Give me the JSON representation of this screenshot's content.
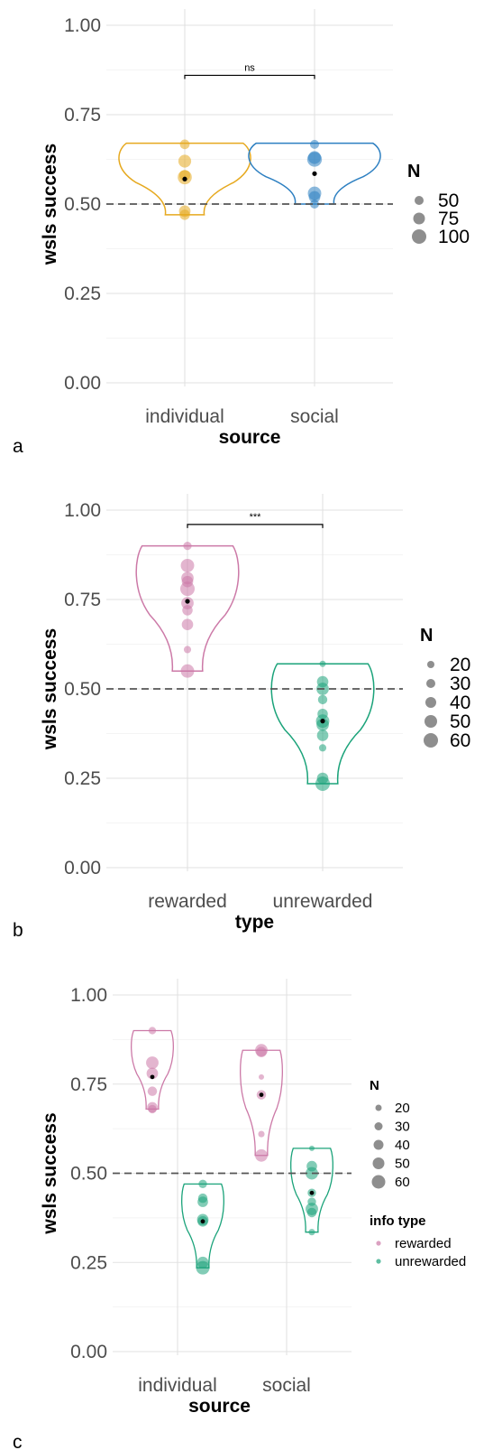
{
  "chart_data": [
    {
      "panel_label": "a",
      "type": "violin",
      "xlabel": "source",
      "ylabel": "wsls success",
      "ylim": [
        0,
        1
      ],
      "yticks": [
        "0.00",
        "0.25",
        "0.50",
        "0.75",
        "1.00"
      ],
      "reference_line": 0.5,
      "categories": [
        "individual",
        "social"
      ],
      "violin_ranges": [
        [
          0.47,
          0.67
        ],
        [
          0.5,
          0.67
        ]
      ],
      "colors": [
        "#E6A91F",
        "#2C7FC1"
      ],
      "points": [
        [
          {
            "y": 0.667,
            "n": 55
          },
          {
            "y": 0.62,
            "n": 80
          },
          {
            "y": 0.58,
            "n": 65
          },
          {
            "y": 0.575,
            "n": 90
          },
          {
            "y": 0.48,
            "n": 70
          },
          {
            "y": 0.47,
            "n": 60
          }
        ],
        [
          {
            "y": 0.667,
            "n": 45
          },
          {
            "y": 0.63,
            "n": 80
          },
          {
            "y": 0.625,
            "n": 95
          },
          {
            "y": 0.53,
            "n": 85
          },
          {
            "y": 0.52,
            "n": 70
          },
          {
            "y": 0.5,
            "n": 50
          }
        ]
      ],
      "means": [
        0.57,
        0.585
      ],
      "significance": {
        "label": "ns",
        "y": 0.86
      },
      "legend": {
        "title": "N",
        "entries": [
          "50",
          "75",
          "100"
        ]
      }
    },
    {
      "panel_label": "b",
      "type": "violin",
      "xlabel": "type",
      "ylabel": "wsls success",
      "ylim": [
        0,
        1
      ],
      "yticks": [
        "0.00",
        "0.25",
        "0.50",
        "0.75",
        "1.00"
      ],
      "reference_line": 0.5,
      "categories": [
        "rewarded",
        "unrewarded"
      ],
      "violin_ranges": [
        [
          0.55,
          0.9
        ],
        [
          0.235,
          0.57
        ]
      ],
      "colors": [
        "#CC79A7",
        "#1BA37A"
      ],
      "points": [
        [
          {
            "y": 0.9,
            "n": 30
          },
          {
            "y": 0.845,
            "n": 55
          },
          {
            "y": 0.81,
            "n": 50
          },
          {
            "y": 0.8,
            "n": 45
          },
          {
            "y": 0.78,
            "n": 60
          },
          {
            "y": 0.74,
            "n": 50
          },
          {
            "y": 0.72,
            "n": 40
          },
          {
            "y": 0.68,
            "n": 45
          },
          {
            "y": 0.61,
            "n": 25
          },
          {
            "y": 0.55,
            "n": 55
          }
        ],
        [
          {
            "y": 0.57,
            "n": 20
          },
          {
            "y": 0.52,
            "n": 45
          },
          {
            "y": 0.5,
            "n": 50
          },
          {
            "y": 0.47,
            "n": 35
          },
          {
            "y": 0.43,
            "n": 40
          },
          {
            "y": 0.41,
            "n": 55
          },
          {
            "y": 0.4,
            "n": 50
          },
          {
            "y": 0.37,
            "n": 45
          },
          {
            "y": 0.335,
            "n": 25
          },
          {
            "y": 0.25,
            "n": 45
          },
          {
            "y": 0.235,
            "n": 60
          }
        ]
      ],
      "means": [
        0.745,
        0.41
      ],
      "significance": {
        "label": "***",
        "y": 0.96
      },
      "legend": {
        "title": "N",
        "entries": [
          "20",
          "30",
          "40",
          "50",
          "60"
        ]
      }
    },
    {
      "panel_label": "c",
      "type": "violin",
      "xlabel": "source",
      "ylabel": "wsls success",
      "ylim": [
        0,
        1
      ],
      "yticks": [
        "0.00",
        "0.25",
        "0.50",
        "0.75",
        "1.00"
      ],
      "reference_line": 0.5,
      "categories": [
        "individual",
        "social"
      ],
      "groups": [
        {
          "category": "individual",
          "info_type": "rewarded",
          "range": [
            0.68,
            0.9
          ],
          "mean": 0.77,
          "points": [
            {
              "y": 0.9,
              "n": 30
            },
            {
              "y": 0.81,
              "n": 55
            },
            {
              "y": 0.78,
              "n": 50
            },
            {
              "y": 0.73,
              "n": 40
            },
            {
              "y": 0.685,
              "n": 45
            },
            {
              "y": 0.68,
              "n": 35
            }
          ]
        },
        {
          "category": "individual",
          "info_type": "unrewarded",
          "range": [
            0.235,
            0.47
          ],
          "mean": 0.365,
          "points": [
            {
              "y": 0.47,
              "n": 35
            },
            {
              "y": 0.43,
              "n": 40
            },
            {
              "y": 0.42,
              "n": 45
            },
            {
              "y": 0.37,
              "n": 50
            },
            {
              "y": 0.365,
              "n": 45
            },
            {
              "y": 0.25,
              "n": 50
            },
            {
              "y": 0.235,
              "n": 60
            }
          ]
        },
        {
          "category": "social",
          "info_type": "rewarded",
          "range": [
            0.55,
            0.845
          ],
          "mean": 0.72,
          "points": [
            {
              "y": 0.845,
              "n": 55
            },
            {
              "y": 0.84,
              "n": 45
            },
            {
              "y": 0.77,
              "n": 15
            },
            {
              "y": 0.72,
              "n": 40
            },
            {
              "y": 0.61,
              "n": 25
            },
            {
              "y": 0.55,
              "n": 55
            }
          ]
        },
        {
          "category": "social",
          "info_type": "unrewarded",
          "range": [
            0.335,
            0.57
          ],
          "mean": 0.445,
          "points": [
            {
              "y": 0.57,
              "n": 20
            },
            {
              "y": 0.52,
              "n": 45
            },
            {
              "y": 0.5,
              "n": 55
            },
            {
              "y": 0.445,
              "n": 35
            },
            {
              "y": 0.42,
              "n": 35
            },
            {
              "y": 0.4,
              "n": 55
            },
            {
              "y": 0.39,
              "n": 40
            },
            {
              "y": 0.335,
              "n": 25
            }
          ]
        }
      ],
      "colors": {
        "rewarded": "#CC79A7",
        "unrewarded": "#1BA37A"
      },
      "legend": {
        "title": "N",
        "entries": [
          "20",
          "30",
          "40",
          "50",
          "60"
        ]
      },
      "legend2": {
        "title": "info type",
        "entries": [
          "rewarded",
          "unrewarded"
        ]
      }
    }
  ]
}
